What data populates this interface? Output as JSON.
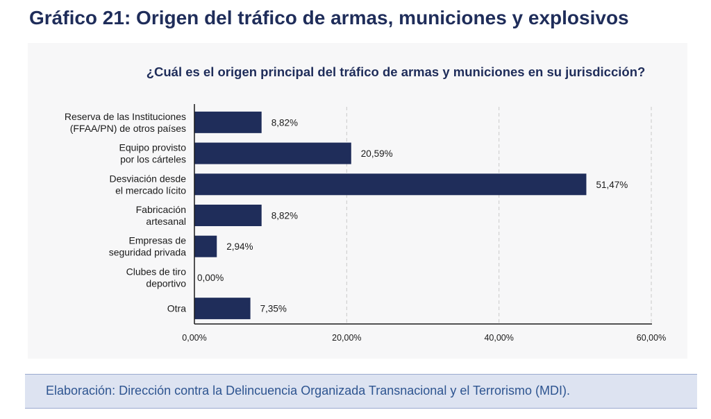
{
  "header": {
    "title": "Gráfico 21: Origen del tráfico de armas, municiones y explosivos"
  },
  "source": {
    "text": "Elaboración: Dirección contra la Delincuencia Organizada Transnacional y el Terrorismo (MDI)."
  },
  "colors": {
    "bar": "#1f2d5a",
    "title": "#1f2d5a",
    "source_text": "#2d5490",
    "source_background": "#dde3f1"
  },
  "chart_data": {
    "type": "bar",
    "orientation": "horizontal",
    "title": "¿Cuál es el origen principal del tráfico de armas y municiones en su jurisdicción?",
    "categories": [
      [
        "Reserva de las Instituciones",
        "(FFAA/PN) de otros países"
      ],
      [
        "Equipo provisto",
        "por los cárteles"
      ],
      [
        "Desviación desde",
        "el mercado lícito"
      ],
      [
        "Fabricación",
        "artesanal"
      ],
      [
        "Empresas de",
        "seguridad privada"
      ],
      [
        "Clubes de tiro",
        "deportivo"
      ],
      [
        "Otra"
      ]
    ],
    "values": [
      8.82,
      20.59,
      51.47,
      8.82,
      2.94,
      0.0,
      7.35
    ],
    "value_labels": [
      "8,82%",
      "20,59%",
      "51,47%",
      "8,82%",
      "2,94%",
      "0,00%",
      "7,35%"
    ],
    "xlim": [
      0,
      60
    ],
    "xticks": [
      0,
      20,
      40,
      60
    ],
    "xtick_labels": [
      "0,00%",
      "20,00%",
      "40,00%",
      "60,00%"
    ],
    "grid": "vertical dashed",
    "legend": "none",
    "xlabel": "",
    "ylabel": ""
  }
}
